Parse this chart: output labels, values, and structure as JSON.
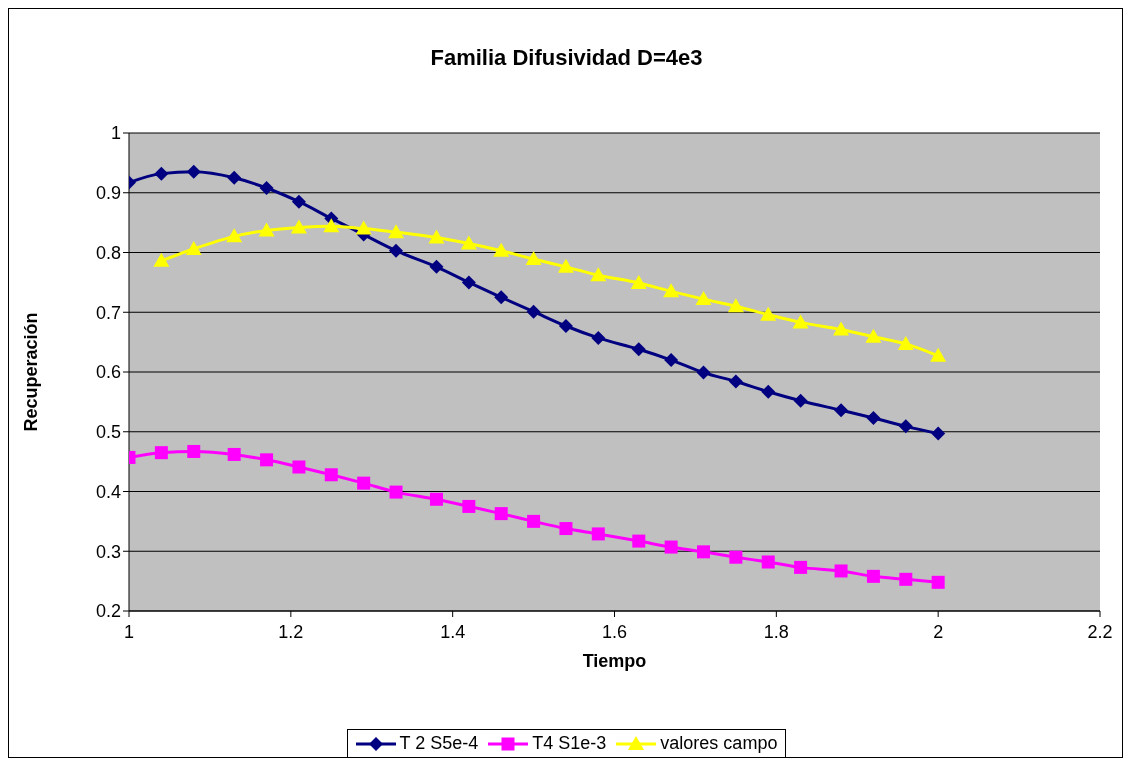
{
  "chart_data": {
    "type": "line",
    "title": "Familia Difusividad D=4e3",
    "xlabel": "Tiempo",
    "ylabel": "Recuperación",
    "xlim": [
      1,
      2.2
    ],
    "xticks": [
      1,
      1.2,
      1.4,
      1.6,
      1.8,
      2,
      2.2
    ],
    "ylim": [
      0.2,
      1
    ],
    "yticks": [
      0.2,
      0.3,
      0.4,
      0.5,
      0.6,
      0.7,
      0.8,
      0.9,
      1
    ],
    "grid": "y",
    "legend": "bottom",
    "series": [
      {
        "name": "T 2 S5e-4",
        "color": "#000080",
        "marker": "diamond",
        "x": [
          1,
          1.04,
          1.08,
          1.13,
          1.17,
          1.21,
          1.25,
          1.29,
          1.33,
          1.38,
          1.42,
          1.46,
          1.5,
          1.54,
          1.58,
          1.63,
          1.67,
          1.71,
          1.75,
          1.79,
          1.83,
          1.88,
          1.92,
          1.96,
          2
        ],
        "values": [
          0.917,
          0.932,
          0.935,
          0.925,
          0.908,
          0.885,
          0.857,
          0.83,
          0.803,
          0.776,
          0.75,
          0.725,
          0.701,
          0.677,
          0.657,
          0.638,
          0.62,
          0.599,
          0.584,
          0.567,
          0.552,
          0.536,
          0.523,
          0.509,
          0.497
        ]
      },
      {
        "name": "T4 S1e-3",
        "color": "#ff00ff",
        "marker": "square",
        "x": [
          1,
          1.04,
          1.08,
          1.13,
          1.17,
          1.21,
          1.25,
          1.29,
          1.33,
          1.38,
          1.42,
          1.46,
          1.5,
          1.54,
          1.58,
          1.63,
          1.67,
          1.71,
          1.75,
          1.79,
          1.83,
          1.88,
          1.92,
          1.96,
          2
        ],
        "values": [
          0.457,
          0.465,
          0.467,
          0.462,
          0.453,
          0.441,
          0.428,
          0.414,
          0.399,
          0.387,
          0.375,
          0.363,
          0.35,
          0.338,
          0.329,
          0.317,
          0.307,
          0.299,
          0.29,
          0.282,
          0.273,
          0.267,
          0.258,
          0.253,
          0.248
        ]
      },
      {
        "name": "valores campo",
        "color": "#ffff00",
        "marker": "triangle",
        "x": [
          1.04,
          1.08,
          1.13,
          1.17,
          1.21,
          1.25,
          1.29,
          1.33,
          1.38,
          1.42,
          1.46,
          1.5,
          1.54,
          1.58,
          1.63,
          1.67,
          1.71,
          1.75,
          1.79,
          1.83,
          1.88,
          1.92,
          1.96,
          2
        ],
        "values": [
          0.786,
          0.806,
          0.827,
          0.837,
          0.842,
          0.844,
          0.84,
          0.834,
          0.825,
          0.815,
          0.803,
          0.789,
          0.776,
          0.762,
          0.749,
          0.735,
          0.722,
          0.71,
          0.696,
          0.683,
          0.671,
          0.659,
          0.647,
          0.627
        ]
      }
    ]
  }
}
